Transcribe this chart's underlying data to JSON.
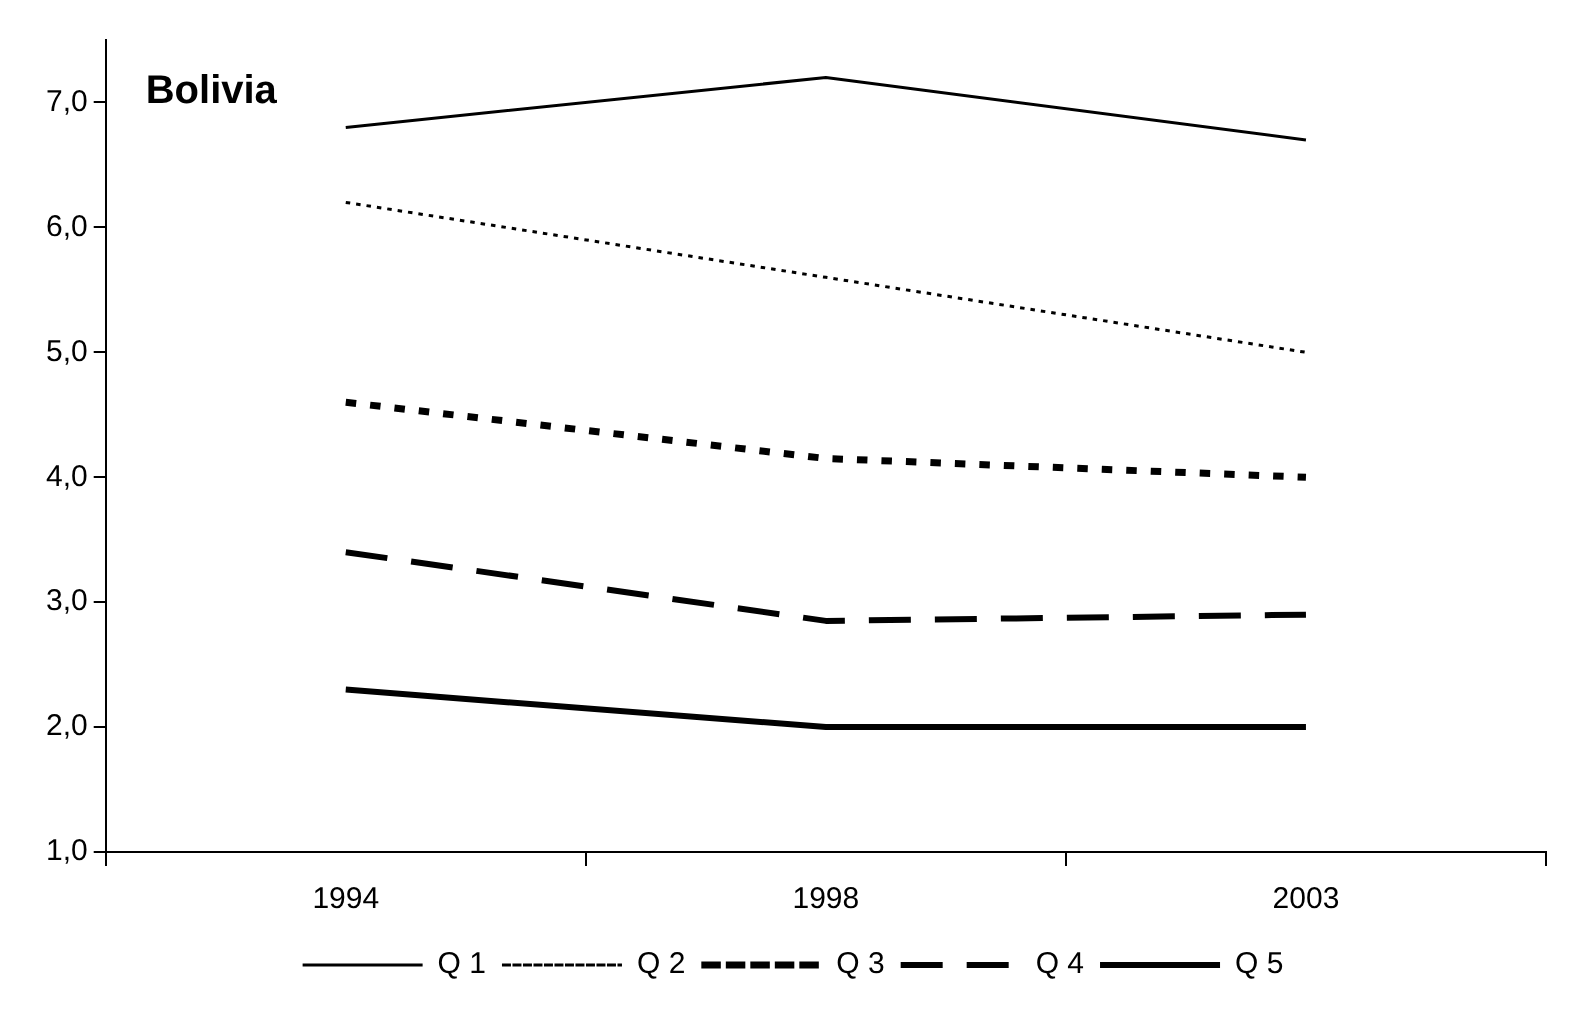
{
  "chart_data": {
    "type": "line",
    "title": "Bolivia",
    "categories": [
      "1994",
      "1998",
      "2003"
    ],
    "series": [
      {
        "name": "Q 1",
        "color": "#000000",
        "line_style": "solid",
        "values": [
          6.8,
          7.2,
          6.7
        ]
      },
      {
        "name": "Q 2",
        "color": "#000000",
        "line_style": "dotted",
        "values": [
          6.2,
          5.6,
          5.0
        ]
      },
      {
        "name": "Q 3",
        "color": "#000000",
        "line_style": "dotted",
        "values": [
          4.6,
          4.15,
          4.0
        ]
      },
      {
        "name": "Q 4",
        "color": "#000000",
        "line_style": "dashed",
        "values": [
          3.4,
          2.85,
          2.9
        ]
      },
      {
        "name": "Q 5",
        "color": "#000000",
        "line_style": "solid",
        "values": [
          2.3,
          2.0,
          2.0
        ]
      }
    ],
    "ylim": [
      1,
      7.5
    ],
    "yticks": [
      {
        "value": 1,
        "label": "1,0"
      },
      {
        "value": 2,
        "label": "2,0"
      },
      {
        "value": 3,
        "label": "3,0"
      },
      {
        "value": 4,
        "label": "4,0"
      },
      {
        "value": 5,
        "label": "5,0"
      },
      {
        "value": 6,
        "label": "6,0"
      },
      {
        "value": 7,
        "label": "7,0"
      }
    ],
    "grid": false,
    "legend": "bottom",
    "marker": "none"
  }
}
